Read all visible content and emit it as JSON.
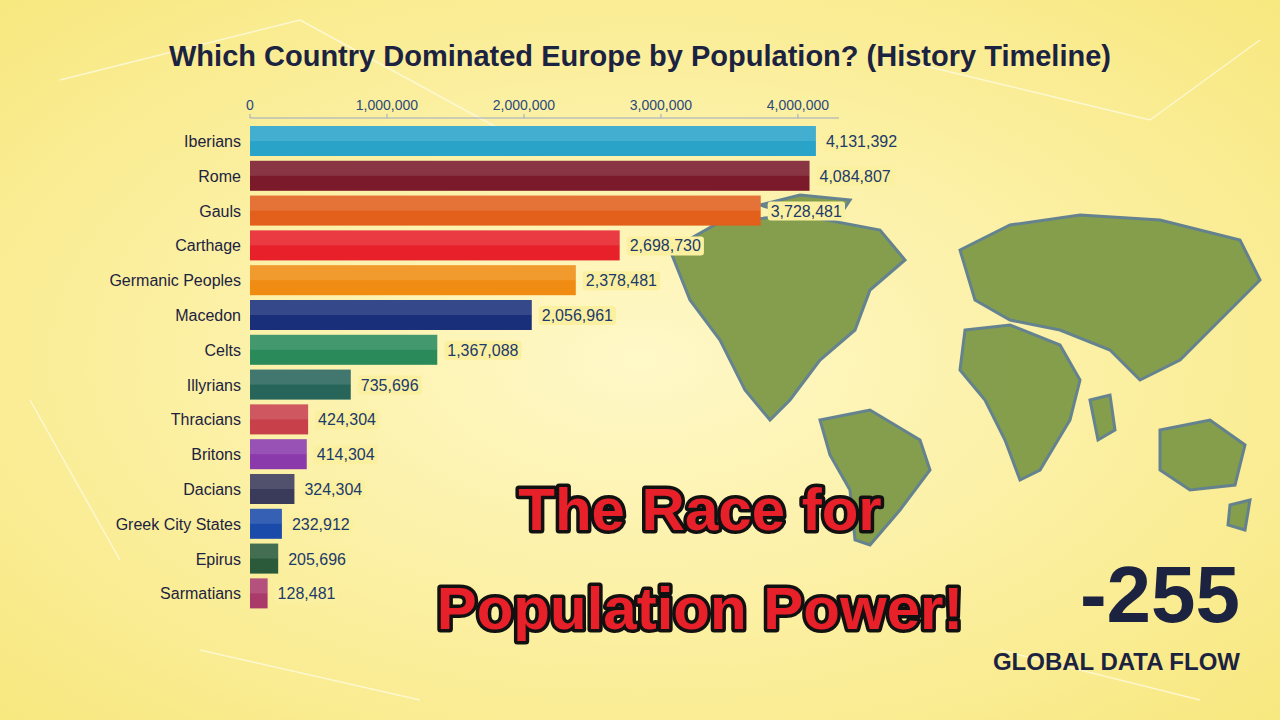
{
  "chart_data": {
    "type": "bar",
    "orientation": "horizontal",
    "title": "Which Country Dominated Europe by Population? (History Timeline)",
    "categories": [
      "Iberians",
      "Rome",
      "Gauls",
      "Carthage",
      "Germanic Peoples",
      "Macedon",
      "Celts",
      "Illyrians",
      "Thracians",
      "Britons",
      "Dacians",
      "Greek City States",
      "Epirus",
      "Sarmatians"
    ],
    "values": [
      4131392,
      4084807,
      3728481,
      2698730,
      2378481,
      2056961,
      1367088,
      735696,
      424304,
      414304,
      324304,
      232912,
      205696,
      128481
    ],
    "value_labels": [
      "4,131,392",
      "4,084,807",
      "3,728,481",
      "2,698,730",
      "2,378,481",
      "2,056,961",
      "1,367,088",
      "735,696",
      "424,304",
      "414,304",
      "324,304",
      "232,912",
      "205,696",
      "128,481"
    ],
    "colors": [
      "#2aa3c9",
      "#7a1a2a",
      "#e2601c",
      "#e8202a",
      "#f08c12",
      "#1a2f7a",
      "#2a8a5a",
      "#27655a",
      "#c8404a",
      "#8a3aaa",
      "#3a3a5a",
      "#1a4aaa",
      "#2a5a3a",
      "#aa3a6a"
    ],
    "xlim": [
      0,
      4300000
    ],
    "xticks": [
      0,
      {
        "value": 1000000,
        "label": "1,000,000"
      },
      {
        "value": 2000000,
        "label": "2,000,000"
      },
      {
        "value": 3000000,
        "label": "3,000,000"
      },
      {
        "value": 4000000,
        "label": "4,000,000"
      }
    ],
    "data_labels": true,
    "grid": false,
    "annotations": [
      "The Race for Population Power!",
      "-255",
      "GLOBAL DATA FLOW"
    ]
  }
}
